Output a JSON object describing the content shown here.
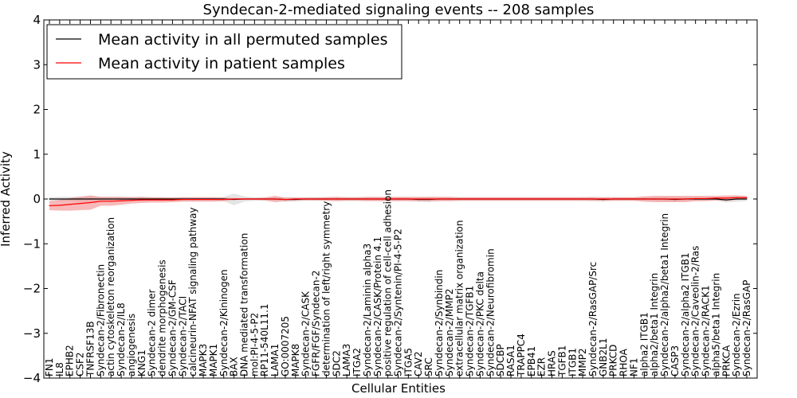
{
  "chart_data": {
    "type": "line",
    "title": "Syndecan-2-mediated signaling events -- 208 samples",
    "xlabel": "Cellular Entities",
    "ylabel": "Inferred Activity",
    "ylim": [
      -4,
      4
    ],
    "yticks": [
      4,
      3,
      2,
      1,
      0,
      -1,
      -2,
      -3,
      -4
    ],
    "ytick_labels": [
      "4",
      "3",
      "2",
      "1",
      "0",
      "−1",
      "−2",
      "−3",
      "−4"
    ],
    "legend": {
      "placement": "top-left",
      "entries": [
        "Mean activity in all permuted samples",
        "Mean activity in patient samples"
      ]
    },
    "categories": [
      "FN1",
      "IL8",
      "EPHB2",
      "CSF2",
      "TNFRSF13B",
      "Syndecan-2/Fibronectin",
      "actin cytoskeleton reorganization",
      "Syndecan-2/IL8",
      "angiogenesis",
      "KNG1",
      "Syndecan-2 dimer",
      "dendrite morphogenesis",
      "Syndecan-2/GM-CSF",
      "Syndecan-2/TACI",
      "calcineurin-NFAT signaling pathway",
      "MAPK3",
      "MAPK1",
      "Syndecan-2/Kininogen",
      "BAX",
      "DNA mediated transformation",
      "mol:PI-4-5-P2",
      "RP11-540L11.1",
      "LAMA1",
      "GO:0007205",
      "MAPK8",
      "Syndecan-2/CASK",
      "FGFR/FGF/Syndecan-2",
      "determination of left/right symmetry",
      "SDC2",
      "LAMA3",
      "ITGA2",
      "Syndecan-2/Laminin alpha3",
      "Syndecan-2/CASK/Protein 4.1",
      "positive regulation of cell-cell adhesion",
      "Syndecan-2/Syntenin/PI-4-5-P2",
      "ITGA5",
      "CAV2",
      "SRC",
      "Syndecan-2/Synbindin",
      "Syndecan-2/MMP2",
      "extracellular matrix organization",
      "Syndecan-2/TGFB1",
      "Syndecan-2/PKC delta",
      "Syndecan-2/Neurofibromin",
      "SDCBP",
      "RASA1",
      "TRAPPC4",
      "EPB41",
      "EZR",
      "HRAS",
      "TGFB1",
      "ITGB1",
      "MMP2",
      "Syndecan-2/RasGAP/Src",
      "GNB2L1",
      "PRKCD",
      "RHOA",
      "NF1",
      "alpha2 ITGB1",
      "alpha2/beta1 Integrin",
      "Syndecan-2/alpha2/beta1 Integrin",
      "CASP3",
      "Syndecan-2/alpha2 ITGB1",
      "Syndecan-2/Caveolin-2/Ras",
      "Syndecan-2/RACK1",
      "alpha5/beta1 Integrin",
      "PRKCA",
      "Syndecan-2/Ezrin",
      "Syndecan-2/RasGAP"
    ],
    "series": [
      {
        "name": "Mean activity in all permuted samples",
        "color": "#000000",
        "band_color": "#d9d9d9",
        "values": [
          0,
          0,
          0,
          0,
          0,
          0,
          0,
          0,
          0,
          0,
          0,
          0,
          0,
          0,
          0,
          0,
          0,
          0,
          -0.01,
          0,
          0,
          0,
          0,
          -0.01,
          -0.01,
          0,
          0,
          0,
          0,
          0,
          0,
          0,
          0,
          0,
          0,
          0,
          -0.01,
          -0.01,
          0,
          0,
          0,
          0,
          0,
          0,
          0,
          0,
          0,
          0,
          0,
          0,
          0,
          0,
          0,
          0,
          -0.01,
          0,
          0,
          0,
          0,
          0,
          0,
          -0.01,
          0,
          0,
          0,
          0,
          -0.02,
          0,
          0
        ],
        "band": [
          0.04,
          0.05,
          0.05,
          0.06,
          0.06,
          0.05,
          0.05,
          0.05,
          0.05,
          0.05,
          0.04,
          0.04,
          0.04,
          0.04,
          0.04,
          0.04,
          0.04,
          0.05,
          0.13,
          0.06,
          0.04,
          0.04,
          0.04,
          0.05,
          0.05,
          0.04,
          0.04,
          0.04,
          0.04,
          0.04,
          0.04,
          0.04,
          0.04,
          0.04,
          0.04,
          0.04,
          0.05,
          0.06,
          0.04,
          0.04,
          0.04,
          0.04,
          0.04,
          0.04,
          0.04,
          0.04,
          0.04,
          0.04,
          0.04,
          0.04,
          0.04,
          0.04,
          0.04,
          0.05,
          0.05,
          0.04,
          0.04,
          0.04,
          0.04,
          0.04,
          0.05,
          0.05,
          0.04,
          0.04,
          0.04,
          0.04,
          0.06,
          0.06,
          0.05
        ]
      },
      {
        "name": "Mean activity in patient samples",
        "color": "#ff0000",
        "band_color": "#f08080",
        "values": [
          -0.15,
          -0.14,
          -0.12,
          -0.1,
          -0.08,
          -0.05,
          -0.05,
          -0.04,
          -0.03,
          -0.02,
          -0.02,
          -0.02,
          -0.02,
          -0.01,
          -0.01,
          -0.01,
          -0.01,
          -0.01,
          0,
          0,
          0,
          0,
          0,
          -0.01,
          0,
          0,
          0,
          0,
          0,
          0,
          0,
          0,
          0,
          0,
          0,
          0,
          0,
          0,
          0,
          0,
          0,
          0,
          0,
          0,
          0,
          0,
          0,
          0,
          0,
          0,
          0,
          0,
          0,
          0,
          0,
          0,
          0,
          0,
          0,
          0,
          0,
          0,
          0,
          0.01,
          0.01,
          0.02,
          0.02,
          0.03,
          0.03
        ],
        "band": [
          0.1,
          0.12,
          0.14,
          0.15,
          0.16,
          0.1,
          0.1,
          0.09,
          0.07,
          0.07,
          0.06,
          0.06,
          0.05,
          0.05,
          0.05,
          0.05,
          0.05,
          0.04,
          0.02,
          0.02,
          0.02,
          0.03,
          0.07,
          0.04,
          0.03,
          0.03,
          0.03,
          0.04,
          0.05,
          0.04,
          0.04,
          0.05,
          0.05,
          0.05,
          0.05,
          0.05,
          0.05,
          0.05,
          0.05,
          0.05,
          0.04,
          0.04,
          0.04,
          0.04,
          0.04,
          0.04,
          0.04,
          0.04,
          0.04,
          0.04,
          0.04,
          0.04,
          0.04,
          0.04,
          0.04,
          0.04,
          0.04,
          0.04,
          0.06,
          0.07,
          0.07,
          0.07,
          0.07,
          0.06,
          0.06,
          0.05,
          0.06,
          0.05,
          0.04
        ]
      }
    ]
  }
}
